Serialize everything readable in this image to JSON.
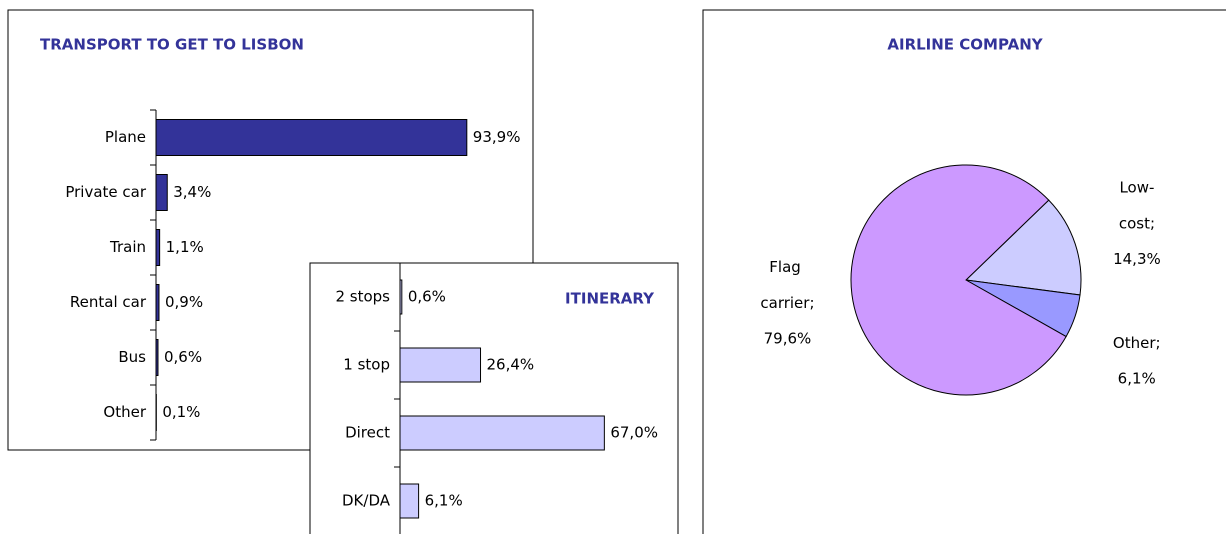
{
  "chart_data": [
    {
      "type": "bar",
      "orientation": "horizontal",
      "title": "TRANSPORT TO GET TO LISBON",
      "categories": [
        "Plane",
        "Private car",
        "Train",
        "Rental car",
        "Bus",
        "Other"
      ],
      "values": [
        93.9,
        3.4,
        1.1,
        0.9,
        0.6,
        0.1
      ],
      "value_labels": [
        "93,9%",
        "3,4%",
        "1,1%",
        "0,9%",
        "0,6%",
        "0,1%"
      ],
      "color": "#333399"
    },
    {
      "type": "bar",
      "orientation": "horizontal",
      "title": "ITINERARY",
      "categories": [
        "2 stops",
        "1 stop",
        "Direct",
        "DK/DA"
      ],
      "values": [
        0.6,
        26.4,
        67.0,
        6.1
      ],
      "value_labels": [
        "0,6%",
        "26,4%",
        "67,0%",
        "6,1%"
      ],
      "color": "#ccccff"
    },
    {
      "type": "pie",
      "title": "AIRLINE COMPANY",
      "categories": [
        "Low-cost",
        "Other",
        "Flag carrier"
      ],
      "values": [
        14.3,
        6.1,
        79.6
      ],
      "value_labels": [
        "14,3%",
        "6,1%",
        "79,6%"
      ],
      "label_separator": ";",
      "colors": [
        "#ccccff",
        "#9999ff",
        "#cc99ff"
      ]
    }
  ]
}
